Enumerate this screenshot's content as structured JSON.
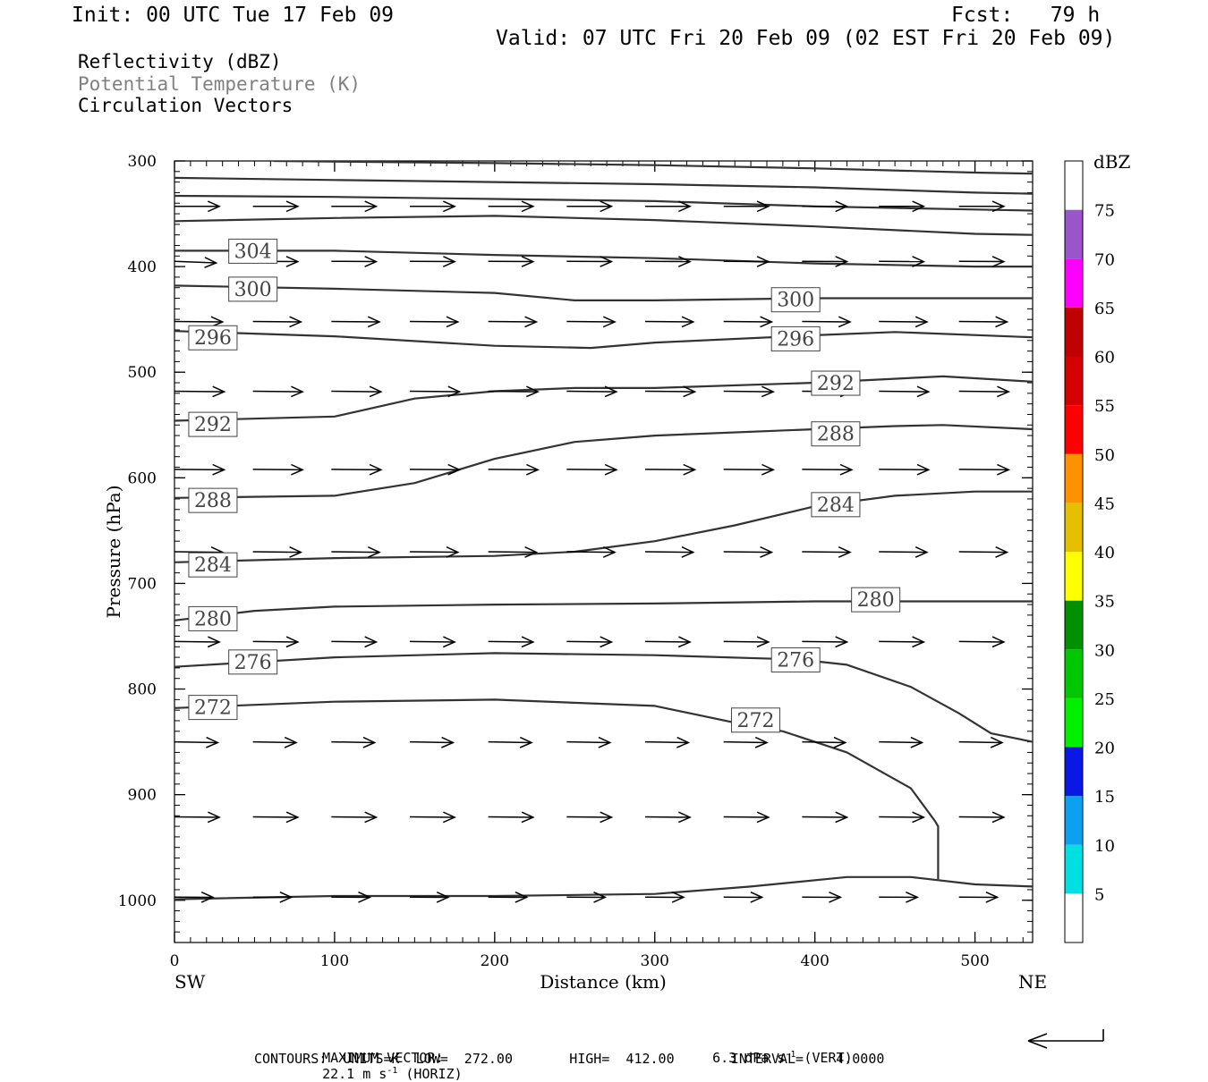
{
  "header": {
    "init": "Init: 00 UTC Tue 17 Feb 09",
    "fcst": "Fcst:   79 h",
    "valid": "Valid: 07 UTC Fri 20 Feb 09 (02 EST Fri 20 Feb 09)"
  },
  "legend": [
    {
      "label": "Reflectivity (dBZ)",
      "color": "#000000"
    },
    {
      "label": "Potential Temperature (K)",
      "color": "#808080"
    },
    {
      "label": "Circulation Vectors",
      "color": "#000000"
    }
  ],
  "footer": {
    "max_vector_label": "MAXIMUM VECTOR:",
    "horiz_value": "22.1 m s",
    "horiz_exp": "-1",
    "horiz_unit": " (HORIZ)",
    "vert_value": "6.3 dPa s",
    "vert_exp": "-1",
    "vert_unit": " (VERT)",
    "contours": "CONTOURS:  UNITS=K  LOW=  272.00       HIGH=  412.00       INTERVAL=    4.0000"
  },
  "chart_data": {
    "type": "contour",
    "xlabel": "Distance (km)",
    "ylabel": "Pressure (hPa)",
    "xlim": [
      0,
      536
    ],
    "ylim": [
      300,
      1040
    ],
    "x_ticks": [
      0,
      100,
      200,
      300,
      400,
      500
    ],
    "y_ticks": [
      300,
      400,
      500,
      600,
      700,
      800,
      900,
      1000
    ],
    "x_end_labels": {
      "left": "SW",
      "right": "NE"
    },
    "colorbar": {
      "title": "dBZ",
      "levels": [
        5,
        10,
        15,
        20,
        25,
        30,
        35,
        40,
        45,
        50,
        55,
        60,
        65,
        70,
        75
      ],
      "colors": [
        "#ffffff",
        "#00e0e0",
        "#0ca0f0",
        "#0a18e6",
        "#00f000",
        "#00c800",
        "#009000",
        "#ffff00",
        "#e6bf00",
        "#ff9000",
        "#ff0000",
        "#d60000",
        "#c00000",
        "#ff00ff",
        "#9955c9",
        "#ffffff"
      ]
    },
    "contours": [
      {
        "label": "",
        "points": [
          [
            62,
            300
          ],
          [
            200,
            302
          ],
          [
            300,
            304
          ],
          [
            400,
            307
          ],
          [
            500,
            311
          ],
          [
            536,
            312
          ]
        ]
      },
      {
        "label": "",
        "points": [
          [
            0,
            316
          ],
          [
            100,
            318
          ],
          [
            200,
            320
          ],
          [
            300,
            322
          ],
          [
            400,
            325
          ],
          [
            500,
            330
          ],
          [
            536,
            331
          ]
        ]
      },
      {
        "label": "",
        "points": [
          [
            0,
            333
          ],
          [
            100,
            334
          ],
          [
            200,
            336
          ],
          [
            300,
            338
          ],
          [
            400,
            343
          ],
          [
            500,
            346
          ],
          [
            536,
            347
          ]
        ]
      },
      {
        "label": "",
        "points": [
          [
            0,
            357
          ],
          [
            100,
            354
          ],
          [
            200,
            352
          ],
          [
            300,
            356
          ],
          [
            400,
            362
          ],
          [
            500,
            369
          ],
          [
            536,
            370
          ]
        ]
      },
      {
        "label": "304",
        "label_at": [
          49,
          385
        ],
        "points": [
          [
            0,
            385
          ],
          [
            100,
            385
          ],
          [
            200,
            389
          ],
          [
            300,
            392
          ],
          [
            400,
            397
          ],
          [
            500,
            400
          ],
          [
            536,
            400
          ]
        ]
      },
      {
        "label": "300",
        "label_at": [
          49,
          421
        ],
        "label2": "300",
        "label2_at": [
          388,
          431
        ],
        "points": [
          [
            0,
            418
          ],
          [
            100,
            421
          ],
          [
            200,
            425
          ],
          [
            250,
            432
          ],
          [
            300,
            432
          ],
          [
            400,
            430
          ],
          [
            536,
            430
          ]
        ]
      },
      {
        "label": "296",
        "label_at": [
          24,
          467
        ],
        "label2": "296",
        "label2_at": [
          388,
          468
        ],
        "points": [
          [
            0,
            461
          ],
          [
            100,
            466
          ],
          [
            200,
            475
          ],
          [
            260,
            477
          ],
          [
            300,
            472
          ],
          [
            400,
            465
          ],
          [
            450,
            462
          ],
          [
            536,
            467
          ]
        ]
      },
      {
        "label": "292",
        "label_at": [
          24,
          549
        ],
        "label2": "292",
        "label2_at": [
          413,
          510
        ],
        "points": [
          [
            0,
            546
          ],
          [
            100,
            542
          ],
          [
            150,
            525
          ],
          [
            200,
            518
          ],
          [
            250,
            515
          ],
          [
            300,
            515
          ],
          [
            400,
            510
          ],
          [
            480,
            504
          ],
          [
            536,
            509
          ]
        ]
      },
      {
        "label": "288",
        "label_at": [
          24,
          621
        ],
        "label2": "288",
        "label2_at": [
          413,
          558
        ],
        "points": [
          [
            0,
            619
          ],
          [
            100,
            617
          ],
          [
            150,
            605
          ],
          [
            200,
            582
          ],
          [
            250,
            566
          ],
          [
            300,
            560
          ],
          [
            400,
            554
          ],
          [
            450,
            551
          ],
          [
            480,
            550
          ],
          [
            536,
            554
          ]
        ]
      },
      {
        "label": "284",
        "label_at": [
          24,
          682
        ],
        "label2": "284",
        "label2_at": [
          413,
          625
        ],
        "points": [
          [
            0,
            680
          ],
          [
            100,
            676
          ],
          [
            200,
            674
          ],
          [
            250,
            670
          ],
          [
            300,
            660
          ],
          [
            350,
            645
          ],
          [
            400,
            627
          ],
          [
            450,
            617
          ],
          [
            500,
            613
          ],
          [
            536,
            613
          ]
        ]
      },
      {
        "label": "280",
        "label_at": [
          24,
          733
        ],
        "label2": "280",
        "label2_at": [
          438,
          715
        ],
        "points": [
          [
            0,
            735
          ],
          [
            50,
            726
          ],
          [
            100,
            722
          ],
          [
            200,
            720
          ],
          [
            300,
            719
          ],
          [
            400,
            717
          ],
          [
            536,
            717
          ]
        ]
      },
      {
        "label": "276",
        "label_at": [
          49,
          774
        ],
        "label2": "276",
        "label2_at": [
          388,
          772
        ],
        "points": [
          [
            0,
            779
          ],
          [
            100,
            770
          ],
          [
            200,
            766
          ],
          [
            300,
            768
          ],
          [
            390,
            772
          ],
          [
            420,
            777
          ],
          [
            460,
            798
          ],
          [
            490,
            823
          ],
          [
            510,
            842
          ],
          [
            536,
            850
          ]
        ]
      },
      {
        "label": "272",
        "label_at": [
          24,
          817
        ],
        "label2": "272",
        "label2_at": [
          363,
          829
        ],
        "points": [
          [
            0,
            818
          ],
          [
            100,
            812
          ],
          [
            200,
            810
          ],
          [
            300,
            816
          ],
          [
            360,
            835
          ],
          [
            380,
            840
          ],
          [
            420,
            860
          ],
          [
            460,
            894
          ],
          [
            475,
            925
          ],
          [
            477,
            930
          ],
          [
            477,
            980
          ]
        ]
      },
      {
        "label": "",
        "points": [
          [
            0,
            999
          ],
          [
            100,
            996
          ],
          [
            200,
            996
          ],
          [
            300,
            994
          ],
          [
            360,
            987
          ],
          [
            420,
            978
          ],
          [
            460,
            978
          ],
          [
            500,
            985
          ],
          [
            536,
            987
          ]
        ]
      }
    ],
    "vectors": [
      {
        "p": 343,
        "x0": [
          0,
          49,
          98,
          147,
          196,
          245,
          294,
          343,
          392,
          440,
          490
        ],
        "u": 28,
        "w": 0
      },
      {
        "p": 395,
        "x0": [
          0
        ],
        "u": 26,
        "w": 1.5
      },
      {
        "p": 395,
        "x0": [
          49,
          98,
          147,
          196,
          245,
          294,
          343,
          392,
          440,
          490
        ],
        "u": 28,
        "w": 0.3
      },
      {
        "p": 452,
        "x0": [
          0,
          49,
          98,
          147,
          196,
          245,
          294,
          343,
          392,
          440,
          490
        ],
        "u": 30,
        "w": 0.4
      },
      {
        "p": 518,
        "x0": [
          0,
          49,
          98,
          147,
          196,
          245,
          294,
          343,
          392,
          440,
          490
        ],
        "u": 31,
        "w": 0.5
      },
      {
        "p": 592,
        "x0": [
          0,
          49,
          98,
          147,
          196,
          245,
          294,
          343,
          392,
          440,
          490
        ],
        "u": 31,
        "w": 0.4
      },
      {
        "p": 670,
        "x0": [
          0,
          49,
          98,
          147,
          196,
          245,
          294,
          343,
          392,
          440,
          490
        ],
        "u": 30,
        "w": 0.5
      },
      {
        "p": 755,
        "x0": [
          0,
          49,
          98,
          147,
          196,
          245,
          294,
          343,
          392,
          440,
          490
        ],
        "u": 28,
        "w": 0.5
      },
      {
        "p": 850,
        "x0": [
          0,
          49,
          98,
          147,
          196,
          245,
          294,
          343,
          392,
          440,
          490
        ],
        "u": 27,
        "w": 0.8
      },
      {
        "p": 921,
        "x0": [
          0,
          49,
          98,
          147,
          196,
          245,
          294,
          343,
          392,
          440,
          490
        ],
        "u": 28,
        "w": 0.5
      },
      {
        "p": 997,
        "x0": [
          0,
          49,
          98,
          147,
          196,
          245,
          294,
          343,
          392,
          440,
          490
        ],
        "u": 24,
        "w": 0.2
      }
    ]
  }
}
